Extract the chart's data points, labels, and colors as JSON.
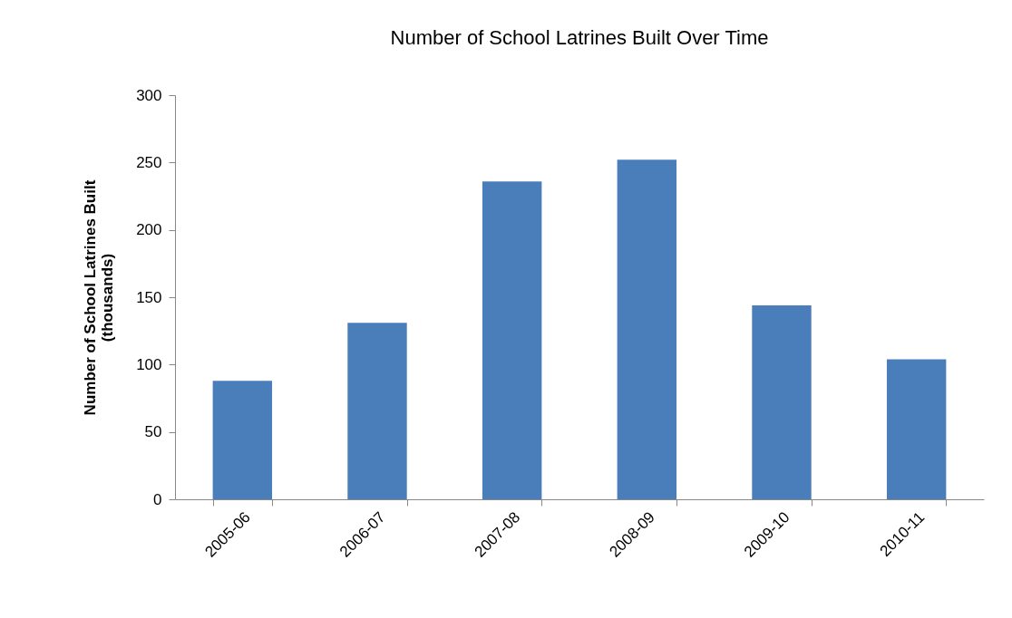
{
  "chart_data": {
    "type": "bar",
    "title": "Number of School Latrines Built Over Time",
    "ylabel": "Number of School Latrines Built\n(thousands)",
    "categories": [
      "2005-06",
      "2006-07",
      "2007-08",
      "2008-09",
      "2009-10",
      "2010-11"
    ],
    "values": [
      88,
      131,
      236,
      252,
      144,
      104
    ],
    "color": "#4a7ebb",
    "ylim": [
      0,
      300
    ],
    "yticks": [
      0,
      50,
      100,
      150,
      200,
      250,
      300
    ],
    "grid": false
  }
}
